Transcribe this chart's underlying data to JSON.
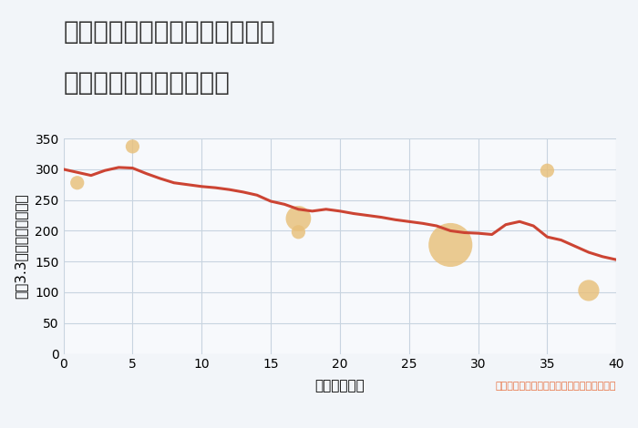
{
  "title_line1": "東京都千代田区神田東松下町の",
  "title_line2": "築年数別中古戸建て価格",
  "xlabel": "築年数（年）",
  "ylabel": "坪（3.3㎡）単価（万円）",
  "bg_color": "#f2f5f9",
  "plot_bg_color": "#f7f9fc",
  "line_color": "#cc4433",
  "line_width": 2.2,
  "line_x": [
    0,
    1,
    2,
    3,
    4,
    5,
    6,
    7,
    8,
    9,
    10,
    11,
    12,
    13,
    14,
    15,
    16,
    17,
    18,
    19,
    20,
    21,
    22,
    23,
    24,
    25,
    26,
    27,
    28,
    29,
    30,
    31,
    32,
    33,
    34,
    35,
    36,
    37,
    38,
    39,
    40
  ],
  "line_y": [
    300,
    295,
    290,
    298,
    303,
    302,
    293,
    285,
    278,
    275,
    272,
    270,
    267,
    263,
    258,
    248,
    243,
    235,
    232,
    235,
    232,
    228,
    225,
    222,
    218,
    215,
    212,
    208,
    200,
    197,
    196,
    194,
    210,
    215,
    208,
    190,
    185,
    175,
    165,
    158,
    153
  ],
  "scatter_x": [
    1,
    5,
    17,
    17,
    28,
    35,
    38
  ],
  "scatter_y": [
    278,
    337,
    220,
    198,
    177,
    298,
    103
  ],
  "scatter_sizes": [
    120,
    120,
    400,
    120,
    1200,
    120,
    280
  ],
  "scatter_color": "#e8c07a",
  "scatter_alpha": 0.82,
  "annotation_text": "円の大きさは、取引のあった物件面積を示す",
  "annotation_color": "#e87040",
  "xlim": [
    0,
    40
  ],
  "ylim": [
    0,
    350
  ],
  "xticks": [
    0,
    5,
    10,
    15,
    20,
    25,
    30,
    35,
    40
  ],
  "yticks": [
    0,
    50,
    100,
    150,
    200,
    250,
    300,
    350
  ],
  "grid_color": "#c8d4e0",
  "title_fontsize": 20,
  "axis_label_fontsize": 11,
  "tick_fontsize": 10,
  "annotation_fontsize": 8
}
